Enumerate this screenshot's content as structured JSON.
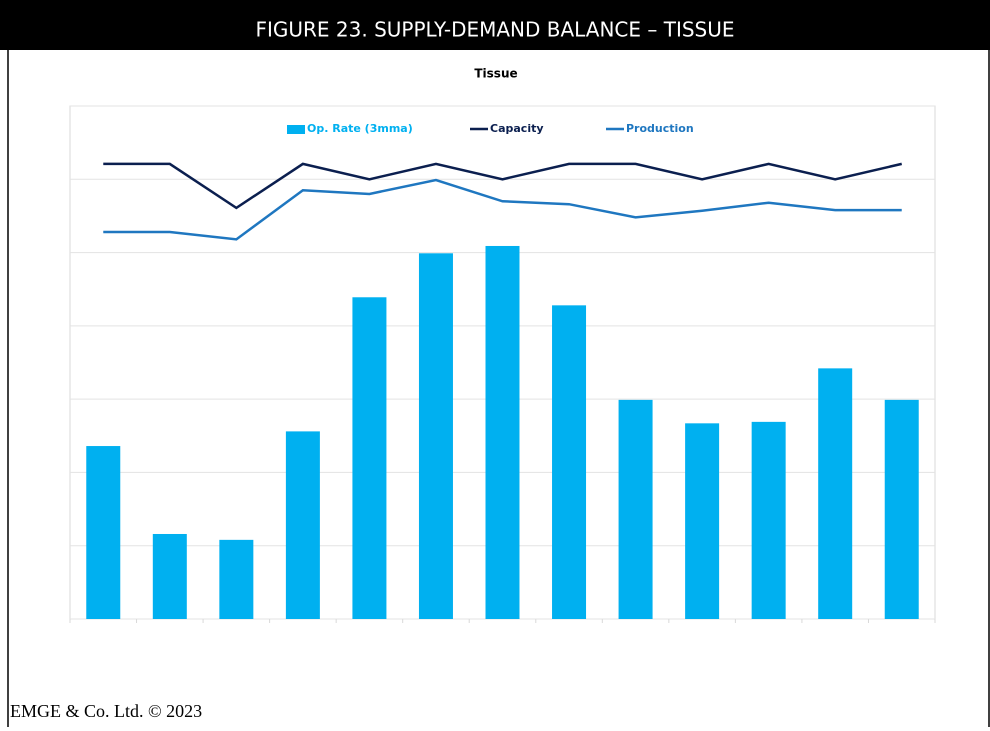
{
  "header": {
    "title": "FIGURE 23. SUPPLY-DEMAND BALANCE – TISSUE"
  },
  "chart_data": {
    "type": "bar",
    "title": "Tissue",
    "categories": [
      null,
      null,
      null,
      null,
      null,
      null,
      null,
      null,
      null,
      null,
      null,
      null,
      null
    ],
    "series": [
      {
        "name": "Op. Rate (3mma)",
        "type": "bar",
        "color": "#00b0f0",
        "values": [
          236,
          116,
          108,
          256,
          439,
          499,
          509,
          428,
          299,
          267,
          269,
          342,
          299
        ]
      },
      {
        "name": "Capacity",
        "type": "line",
        "color": "#0b1f4f",
        "values": [
          621,
          621,
          561,
          621,
          600,
          621,
          600,
          621,
          621,
          600,
          621,
          600,
          621
        ]
      },
      {
        "name": "Production",
        "type": "line",
        "color": "#1f77c0",
        "values": [
          528,
          528,
          518,
          585,
          580,
          599,
          570,
          566,
          548,
          557,
          568,
          558,
          558
        ]
      }
    ],
    "ylim": [
      0,
      700
    ],
    "yticks": [
      0,
      100,
      200,
      300,
      400,
      500,
      600,
      700
    ],
    "grid": true,
    "legend": "top"
  },
  "footer": {
    "text": "EMGE & Co. Ltd. © 2023"
  }
}
